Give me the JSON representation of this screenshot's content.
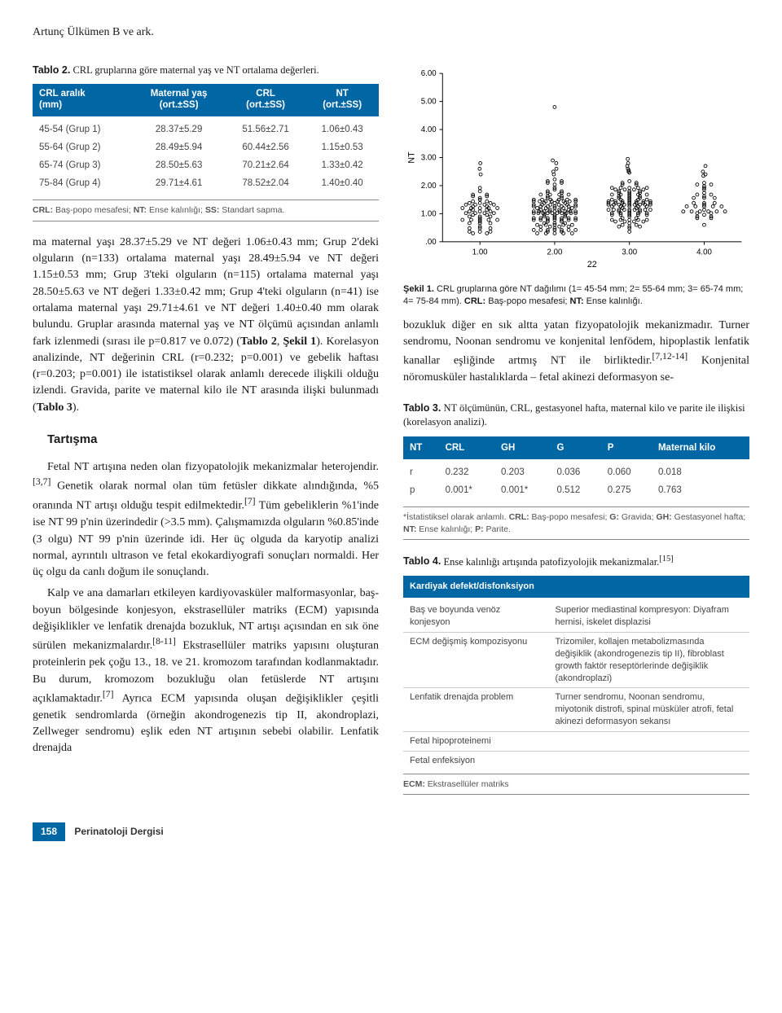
{
  "header": {
    "running_head": "Artunç Ülkümen B ve ark."
  },
  "table2": {
    "title_label": "Tablo 2.",
    "title_text": "CRL gruplarına göre maternal yaş ve NT ortalama değerleri.",
    "columns": [
      {
        "l1": "CRL aralık",
        "l2": "(mm)"
      },
      {
        "l1": "Maternal yaş",
        "l2": "(ort.±SS)"
      },
      {
        "l1": "CRL",
        "l2": "(ort.±SS)"
      },
      {
        "l1": "NT",
        "l2": "(ort.±SS)"
      }
    ],
    "rows": [
      [
        "45-54 (Grup 1)",
        "28.37±5.29",
        "51.56±2.71",
        "1.06±0.43"
      ],
      [
        "55-64 (Grup 2)",
        "28.49±5.94",
        "60.44±2.56",
        "1.15±0.53"
      ],
      [
        "65-74 (Grup 3)",
        "28.50±5.63",
        "70.21±2.64",
        "1.33±0.42"
      ],
      [
        "75-84 (Grup 4)",
        "29.71±4.61",
        "78.52±2.04",
        "1.40±0.40"
      ]
    ],
    "footnote_html": "<b>CRL:</b> Baş-popo mesafesi; <b>NT:</b> Ense kalınlığı; <b>SS:</b> Standart sapma."
  },
  "body_left_1_html": "ma maternal yaşı 28.37±5.29 ve NT değeri 1.06±0.43 mm; Grup 2'deki olguların (n=133) ortalama maternal yaşı 28.49±5.94 ve NT değeri 1.15±0.53 mm; Grup 3'teki olguların (n=115) ortalama maternal yaşı 28.50±5.63 ve NT değeri 1.33±0.42 mm; Grup 4'teki olguların (n=41) ise ortalama maternal yaşı 29.71±4.61 ve NT değeri 1.40±0.40 mm olarak bulundu. Gruplar arasında maternal yaş ve NT ölçümü açısından anlamlı fark izlenmedi (sırası ile p=0.817 ve 0.072) (<b>Tablo 2</b>, <b>Şekil 1</b>). Korelasyon analizinde, NT değerinin CRL (r=0.232; p=0.001) ve gebelik haftası (r=0.203; p=0.001) ile istatistiksel olarak anlamlı derecede ilişkili olduğu izlendi. Gravida, parite ve maternal kilo ile NT arasında ilişki bulunmadı (<b>Tablo 3</b>).",
  "section_heading": "Tartışma",
  "body_left_2_html": "Fetal NT artışına neden olan fizyopatolojik mekanizmalar heterojendir.<sup>[3,7]</sup> Genetik olarak normal olan tüm fetüsler dikkate alındığında, %5 oranında NT artışı olduğu tespit edilmektedir.<sup>[7]</sup> Tüm gebeliklerin %1'inde ise NT 99 p'nin üzerindedir (&gt;3.5 mm). Çalışmamızda olguların %0.85'inde (3 olgu) NT 99 p'nin üzerinde idi. Her üç olguda da karyotip analizi normal, ayrıntılı ultrason ve fetal ekokardiyografi sonuçları normaldi. Her üç olgu da canlı doğum ile sonuçlandı.",
  "body_left_3_html": "Kalp ve ana damarları etkileyen kardiyovasküler malformasyonlar, baş-boyun bölgesinde konjesyon, ekstrasellüler matriks (ECM) yapısında değişiklikler ve lenfatik drenajda bozukluk, NT artışı açısından en sık öne sürülen mekanizmalardır.<sup>[8-11]</sup> Ekstrasellüler matriks yapısını oluşturan proteinlerin pek çoğu 13., 18. ve 21. kromozom tarafından kodlanmaktadır. Bu durum, kromozom bozukluğu olan fetüslerde NT artışını açıklamaktadır.<sup>[7]</sup> Ayrıca ECM yapısında oluşan değişiklikler çeşitli genetik sendromlarda (örneğin akondrogenezis tip II, akondroplazi, Zellweger sendromu) eşlik eden NT artışının sebebi olabilir. Lenfatik drenajda",
  "body_right_1_html": "bozukluk diğer en sık altta yatan fizyopatolojik mekanizmadır. Turner sendromu, Noonan sendromu ve konjenital lenfödem, hipoplastik lenfatik kanallar eşliğinde artmış NT ile birliktedir.<sup>[7,12-14]</sup> Konjenital nöromusküler hastalıklarda – fetal akinezi deformasyon se-",
  "figure1": {
    "type": "stripplot",
    "title_label": "Şekil 1.",
    "caption_html": "CRL gruplarına göre NT dağılımı (1= 45-54 mm; 2= 55-64 mm; 3= 65-74 mm; 4= 75-84 mm). <b>CRL:</b> Baş-popo mesafesi; <b>NT:</b> Ense kalınlığı.",
    "xlabel": "22",
    "ylabel": "NT",
    "xlim": [
      0.5,
      4.5
    ],
    "ylim": [
      0.0,
      6.0
    ],
    "xticks": [
      1.0,
      2.0,
      3.0,
      4.0
    ],
    "xtick_labels": [
      "1.00",
      "2.00",
      "3.00",
      "4.00"
    ],
    "yticks": [
      0.0,
      1.0,
      2.0,
      3.0,
      4.0,
      5.0,
      6.0
    ],
    "ytick_labels": [
      ".00",
      "1.00",
      "2.00",
      "3.00",
      "4.00",
      "5.00",
      "6.00"
    ],
    "marker": {
      "shape": "circle",
      "fill": "none",
      "stroke": "#000000",
      "r": 2,
      "stroke_width": 0.9
    },
    "axis_color": "#000000",
    "tick_fontsize": 10,
    "label_fontsize": 11,
    "background_color": "#ffffff",
    "groups": [
      {
        "x": 1.0,
        "n": 60,
        "mean": 1.06,
        "sd": 0.43,
        "outliers": [
          2.4,
          2.6,
          2.8
        ]
      },
      {
        "x": 2.0,
        "n": 133,
        "mean": 1.15,
        "sd": 0.53,
        "outliers": [
          4.8,
          2.9,
          2.8,
          2.6,
          2.5,
          2.4
        ]
      },
      {
        "x": 3.0,
        "n": 115,
        "mean": 1.33,
        "sd": 0.42,
        "outliers": [
          2.95,
          2.8,
          2.7,
          2.6,
          2.55,
          2.5
        ]
      },
      {
        "x": 4.0,
        "n": 41,
        "mean": 1.4,
        "sd": 0.4,
        "outliers": [
          2.7,
          2.5,
          2.4,
          2.35
        ]
      }
    ],
    "jitter_width": 0.28
  },
  "table3": {
    "title_label": "Tablo 3.",
    "title_text": "NT ölçümünün, CRL, gestasyonel hafta, maternal kilo ve parite ile ilişkisi (korelasyon analizi).",
    "columns": [
      "NT",
      "CRL",
      "GH",
      "G",
      "P",
      "Maternal kilo"
    ],
    "rows": [
      [
        "r",
        "0.232",
        "0.203",
        "0.036",
        "0.060",
        "0.018"
      ],
      [
        "p",
        "0.001*",
        "0.001*",
        "0.512",
        "0.275",
        "0.763"
      ]
    ],
    "footnote_html": "*İstatistiksel olarak anlamlı. <b>CRL:</b> Baş-popo mesafesi; <b>G:</b> Gravida; <b>GH:</b> Gestasyonel hafta; <b>NT:</b> Ense kalınlığı; <b>P:</b> Parite."
  },
  "table4": {
    "title_label": "Tablo 4.",
    "title_text_html": "Ense kalınlığı artışında patofizyolojik mekanizmalar.<sup>[15]</sup>",
    "header": "Kardiyak defekt/disfonksiyon",
    "rows": [
      [
        "Baş ve boyunda venöz konjesyon",
        "Superior mediastinal kompresyon: Diyafram hernisi, iskelet displazisi"
      ],
      [
        "ECM değişmiş kompozisyonu",
        "Trizomiler, kollajen metabolizmasında değişiklik (akondrogenezis tip II), fibroblast growth faktör reseptörlerinde değişiklik (akondroplazi)"
      ],
      [
        "Lenfatik drenajda problem",
        "Turner sendromu, Noonan sendromu, miyotonik distrofi, spinal müsküler atrofi, fetal akinezi deformasyon sekansı"
      ],
      [
        "Fetal hipoproteinemi",
        ""
      ],
      [
        "Fetal enfeksiyon",
        ""
      ]
    ],
    "footnote_html": "<b>ECM:</b> Ekstrasellüler matriks"
  },
  "footer": {
    "page_number": "158",
    "journal": "Perinatoloji Dergisi"
  }
}
